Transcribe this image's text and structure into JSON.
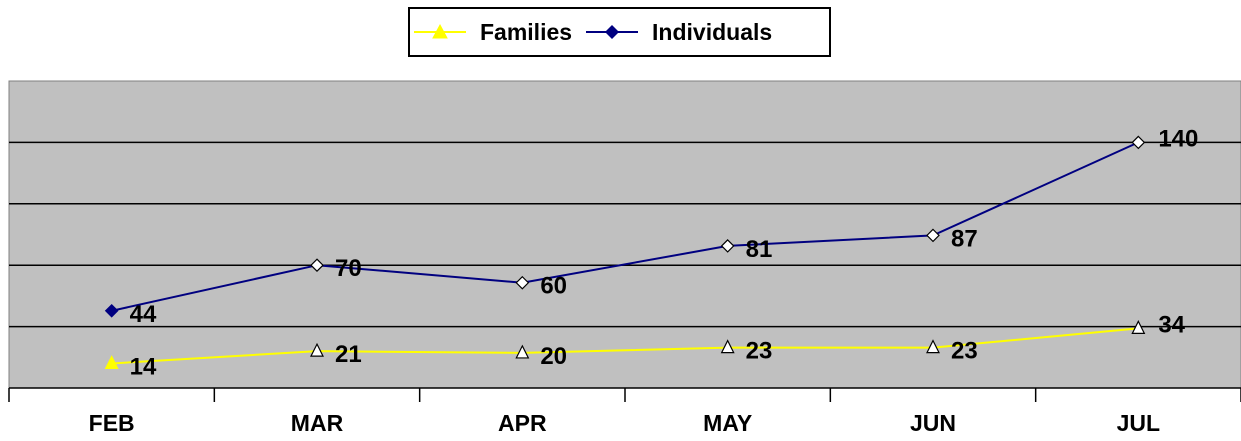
{
  "chart_data": {
    "type": "line",
    "categories": [
      "FEB",
      "MAR",
      "APR",
      "MAY",
      "JUN",
      "JUL"
    ],
    "series": [
      {
        "name": "Families",
        "values": [
          14,
          21,
          20,
          23,
          23,
          34
        ],
        "color": "#ffff00",
        "marker": "triangle"
      },
      {
        "name": "Individuals",
        "values": [
          44,
          70,
          60,
          81,
          87,
          140
        ],
        "color": "#000080",
        "marker": "diamond"
      }
    ],
    "title": "",
    "xlabel": "",
    "ylabel": "",
    "ylim": [
      0,
      175
    ],
    "ytick_step": 35,
    "grid": true,
    "plot_background": "#c0c0c0",
    "legend_position": "top-center"
  }
}
